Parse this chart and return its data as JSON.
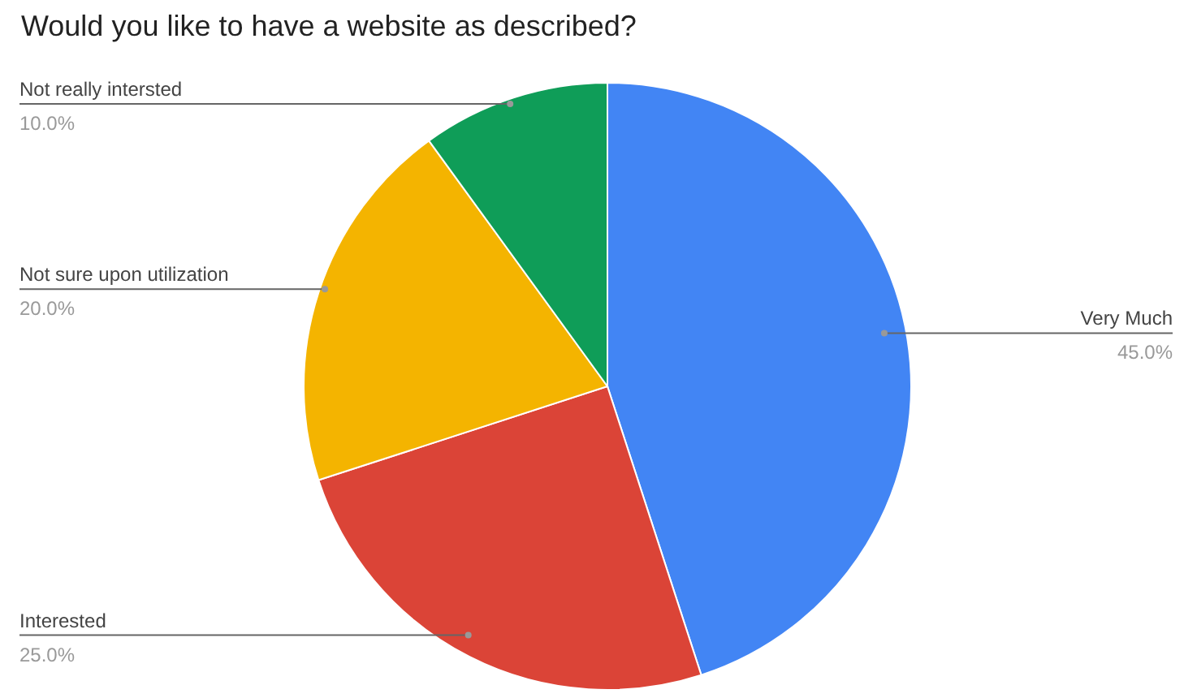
{
  "chart_data": {
    "type": "pie",
    "title": "Would you like to have a website as described?",
    "categories": [
      "Very Much",
      "Interested",
      "Not sure upon utilization",
      "Not really intersted"
    ],
    "values": [
      45,
      25,
      20,
      10
    ],
    "value_labels": [
      "45.0%",
      "25.0%",
      "20.0%",
      "10.0%"
    ],
    "colors": [
      "#4285f4",
      "#db4437",
      "#f4b400",
      "#0f9d58"
    ]
  }
}
